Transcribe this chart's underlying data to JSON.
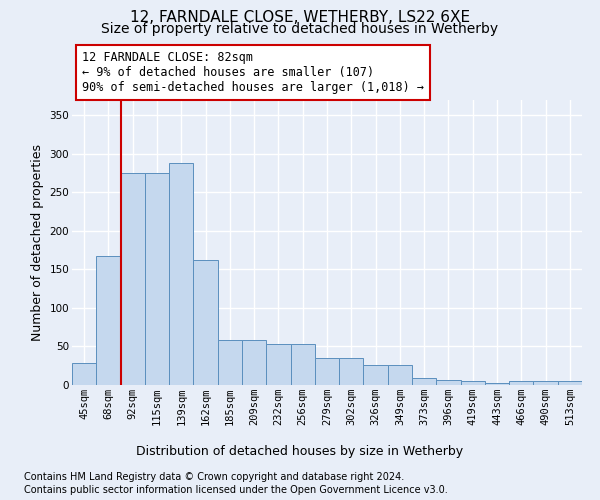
{
  "title": "12, FARNDALE CLOSE, WETHERBY, LS22 6XE",
  "subtitle": "Size of property relative to detached houses in Wetherby",
  "xlabel": "Distribution of detached houses by size in Wetherby",
  "ylabel": "Number of detached properties",
  "bar_labels": [
    "45sqm",
    "68sqm",
    "92sqm",
    "115sqm",
    "139sqm",
    "162sqm",
    "185sqm",
    "209sqm",
    "232sqm",
    "256sqm",
    "279sqm",
    "302sqm",
    "326sqm",
    "349sqm",
    "373sqm",
    "396sqm",
    "419sqm",
    "443sqm",
    "466sqm",
    "490sqm",
    "513sqm"
  ],
  "bar_values": [
    28,
    168,
    275,
    275,
    288,
    162,
    58,
    58,
    53,
    53,
    35,
    35,
    26,
    26,
    9,
    6,
    5,
    3,
    5,
    5,
    5
  ],
  "bar_color": "#c5d8ee",
  "bar_edgecolor": "#5b8fbe",
  "vline_x": 1.5,
  "vline_color": "#cc0000",
  "ylim_max": 370,
  "yticks": [
    0,
    50,
    100,
    150,
    200,
    250,
    300,
    350
  ],
  "annotation_line1": "12 FARNDALE CLOSE: 82sqm",
  "annotation_line2": "← 9% of detached houses are smaller (107)",
  "annotation_line3": "90% of semi-detached houses are larger (1,018) →",
  "annot_facecolor": "#ffffff",
  "annot_edgecolor": "#cc0000",
  "footnote1": "Contains HM Land Registry data © Crown copyright and database right 2024.",
  "footnote2": "Contains public sector information licensed under the Open Government Licence v3.0.",
  "bg_color": "#e8eef8",
  "grid_color": "#ffffff",
  "title_fontsize": 11,
  "subtitle_fontsize": 10,
  "ylabel_fontsize": 9,
  "xlabel_fontsize": 9,
  "tick_fontsize": 7.5,
  "annot_fontsize": 8.5,
  "footnote_fontsize": 7
}
